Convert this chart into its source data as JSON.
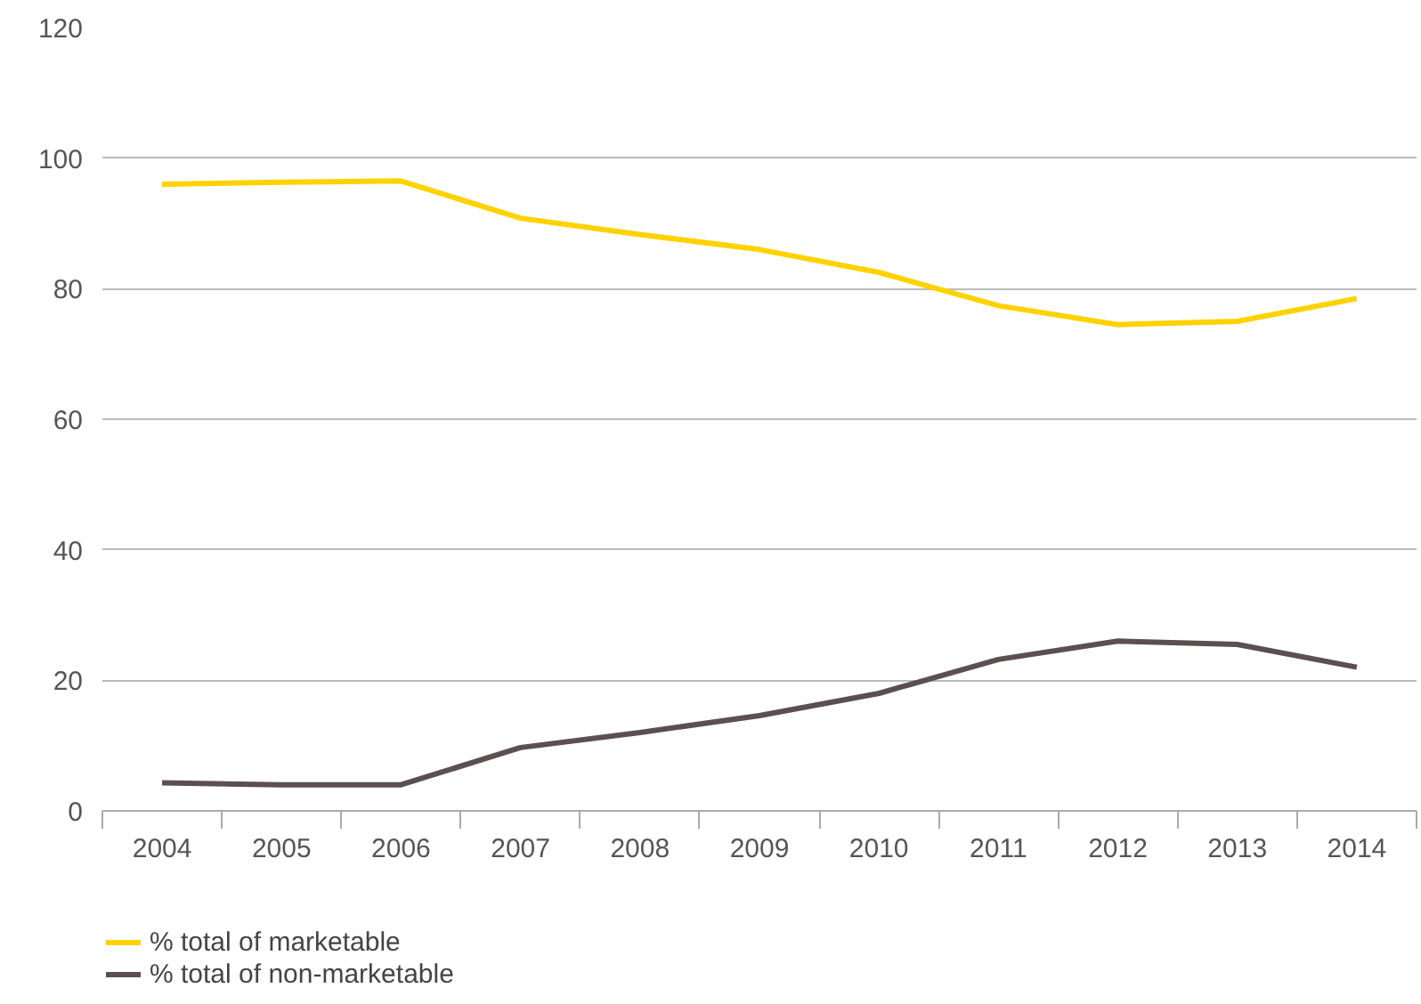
{
  "chart_data": {
    "type": "line",
    "categories": [
      "2004",
      "2005",
      "2006",
      "2007",
      "2008",
      "2009",
      "2010",
      "2011",
      "2012",
      "2013",
      "2014"
    ],
    "series": [
      {
        "name": "% total of marketable",
        "color": "#ffd200",
        "values": [
          96,
          96.3,
          96.5,
          90.8,
          88.3,
          86,
          82.5,
          77.4,
          74.5,
          75,
          78.5
        ]
      },
      {
        "name": "% total of non-marketable",
        "color": "#5c4f4f",
        "values": [
          4.3,
          4,
          4,
          9.7,
          12,
          14.6,
          18,
          23.2,
          26,
          25.5,
          22
        ]
      }
    ],
    "ylim": [
      0,
      120
    ],
    "yticks": [
      0,
      20,
      40,
      60,
      80,
      100,
      120
    ],
    "grid": "y",
    "legend": "bottom left",
    "marker": "none",
    "line_style": "solid"
  }
}
